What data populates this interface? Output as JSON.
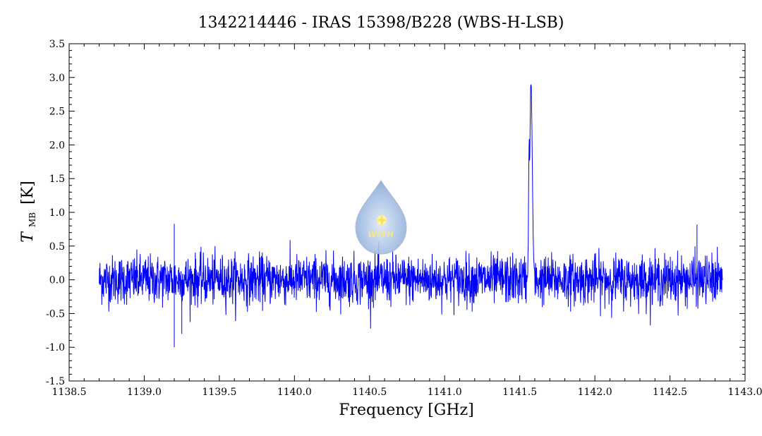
{
  "chart_data": {
    "type": "line",
    "title": "1342214446 - IRAS 15398/B228 (WBS-H-LSB)",
    "xlabel": "Frequency [GHz]",
    "ylabel_symbol": "T",
    "ylabel_subscript": "MB",
    "ylabel_unit": "[K]",
    "xlim": [
      1138.5,
      1143.0
    ],
    "ylim": [
      -1.5,
      3.5
    ],
    "x_ticks": [
      "1138.5",
      "1139.0",
      "1139.5",
      "1140.0",
      "1140.5",
      "1141.0",
      "1141.5",
      "1142.0",
      "1142.5",
      "1143.0"
    ],
    "y_ticks": [
      "-1.5",
      "-1.0",
      "-0.5",
      "0.0",
      "0.5",
      "1.0",
      "1.5",
      "2.0",
      "2.5",
      "3.0",
      "3.5"
    ],
    "series": [
      {
        "color": "#0000ff",
        "x_start": 1138.7,
        "x_end": 1142.85,
        "noise_rms": 0.18,
        "features": [
          {
            "x": 1141.555,
            "y": 0.5
          },
          {
            "x": 1141.565,
            "y": 2.1
          },
          {
            "x": 1141.575,
            "y": 2.95
          },
          {
            "x": 1141.585,
            "y": 2.6
          },
          {
            "x": 1139.2,
            "y": -1.0
          },
          {
            "x": 1139.25,
            "y": -0.8
          },
          {
            "x": 1139.2,
            "y": 0.83
          },
          {
            "x": 1142.68,
            "y": 0.82
          }
        ]
      }
    ]
  },
  "logo": {
    "text": "WISH",
    "color": "#8fb0d8"
  }
}
